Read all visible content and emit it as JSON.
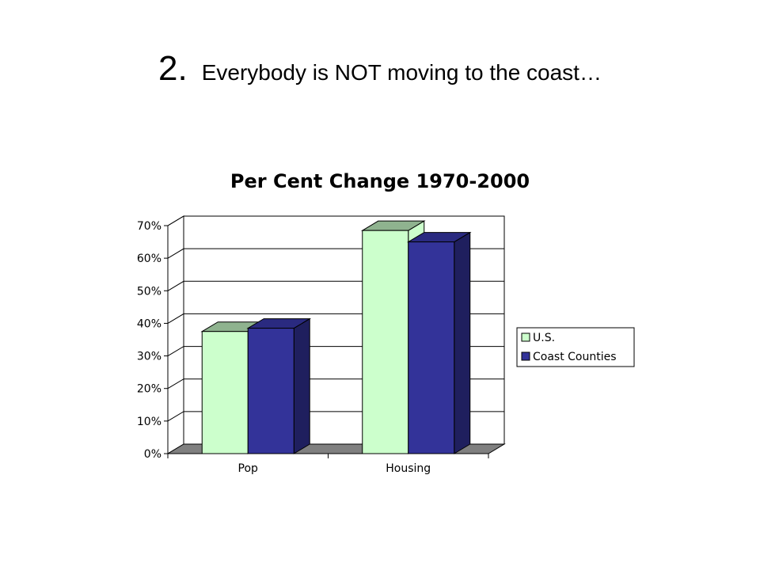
{
  "slide": {
    "number": "2.",
    "heading": "Everybody is NOT moving to the coast…"
  },
  "colors": {
    "us_front": "#ccffcc",
    "us_top": "#8fb38f",
    "coast_front": "#333399",
    "coast_side": "#1f1f5e",
    "coast_top": "#2a2a80",
    "floor": "#808080",
    "walls": "#ffffff"
  },
  "chart_data": {
    "type": "bar",
    "title": "Per Cent Change 1970-2000",
    "categories": [
      "Pop",
      "Housing"
    ],
    "series": [
      {
        "name": "U.S.",
        "values": [
          37.5,
          68.5
        ]
      },
      {
        "name": "Coast Counties",
        "values": [
          38.5,
          65
        ]
      }
    ],
    "ylim": [
      0,
      70
    ],
    "yticks": [
      "0%",
      "10%",
      "20%",
      "30%",
      "40%",
      "50%",
      "60%",
      "70%"
    ],
    "grid": true,
    "legend": "right",
    "three_d": true
  }
}
